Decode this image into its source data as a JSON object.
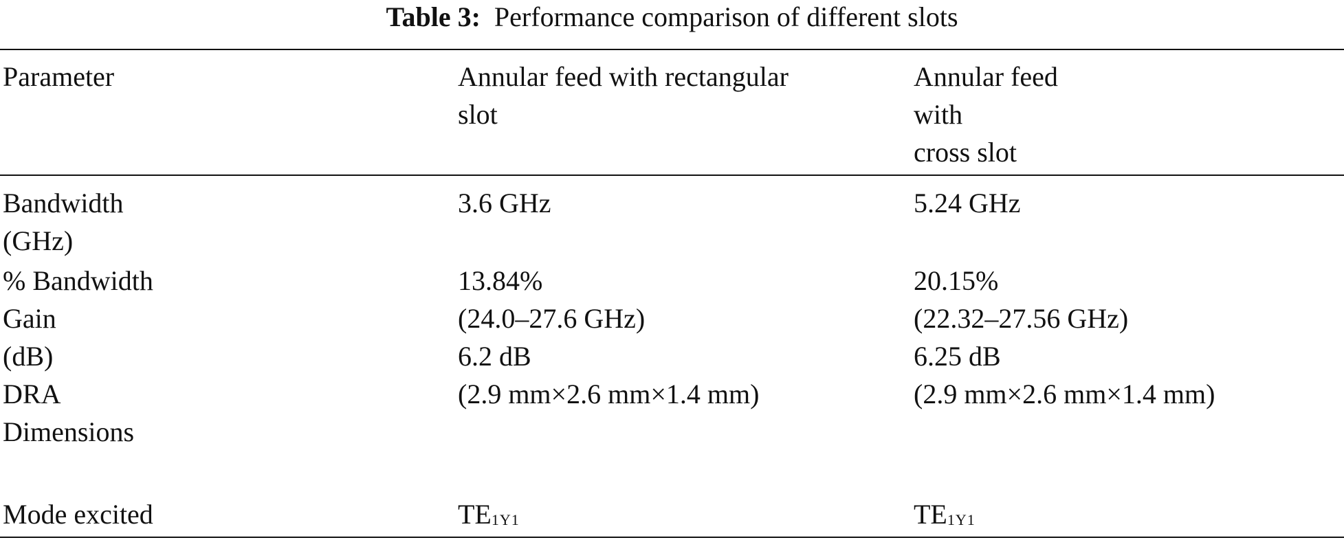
{
  "caption": {
    "label": "Table 3:",
    "text": "Performance comparison of different slots"
  },
  "table": {
    "headers": [
      {
        "lines": [
          "Parameter"
        ]
      },
      {
        "lines": [
          "Annular feed with rectangular",
          "slot"
        ]
      },
      {
        "lines": [
          "Annular feed",
          "with",
          "cross slot"
        ]
      }
    ],
    "rows": [
      {
        "parameter": [
          "Bandwidth",
          "(GHz)"
        ],
        "rectangular": [
          "3.6 GHz"
        ],
        "cross": [
          "5.24 GHz"
        ]
      },
      {
        "parameter": [
          "% Bandwidth",
          "Gain",
          "(dB)",
          "DRA",
          "Dimensions"
        ],
        "rectangular": [
          "13.84%",
          "(24.0–27.6 GHz)",
          "6.2 dB",
          "(2.9 mm×2.6 mm×1.4 mm)"
        ],
        "cross": [
          "20.15%",
          "(22.32–27.56 GHz)",
          "6.25 dB",
          "(2.9 mm×2.6 mm×1.4 mm)"
        ]
      },
      {
        "parameter": [
          "Mode excited"
        ],
        "rectangular_mode": {
          "base": "TE",
          "sub": "1Y1"
        },
        "cross_mode": {
          "base": "TE",
          "sub": "1Y1"
        }
      }
    ]
  }
}
